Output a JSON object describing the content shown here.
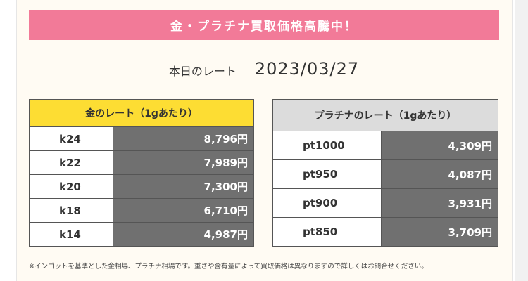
{
  "banner": {
    "title": "金・プラチナ買取価格高騰中！",
    "color": "#f27a98"
  },
  "date": {
    "label": "本日のレート",
    "value": "2023/03/27"
  },
  "gold": {
    "header": "金のレート（1gあたり）",
    "header_color": "#fddd33",
    "rows": [
      {
        "name": "k24",
        "price": "8,796円"
      },
      {
        "name": "k22",
        "price": "7,989円"
      },
      {
        "name": "k20",
        "price": "7,300円"
      },
      {
        "name": "k18",
        "price": "6,710円"
      },
      {
        "name": "k14",
        "price": "4,987円"
      }
    ]
  },
  "platinum": {
    "header": "プラチナのレート（1gあたり）",
    "header_color": "#dcdcdc",
    "rows": [
      {
        "name": "pt1000",
        "price": "4,309円"
      },
      {
        "name": "pt950",
        "price": "4,087円"
      },
      {
        "name": "pt900",
        "price": "3,931円"
      },
      {
        "name": "pt850",
        "price": "3,709円"
      }
    ]
  },
  "footnote": "※インゴットを基準とした金相場、プラチナ相場です。重さや含有量によって買取価格は異なりますので詳しくはお問合せください。"
}
